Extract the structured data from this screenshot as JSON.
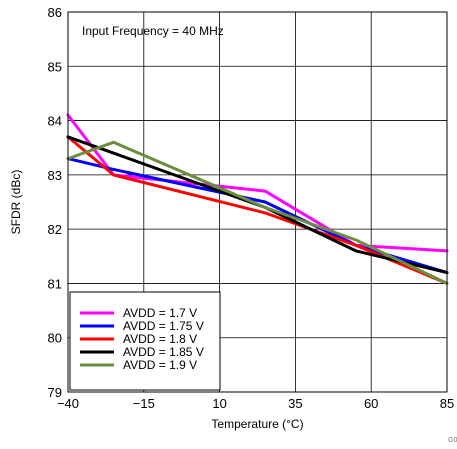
{
  "chart_data": {
    "type": "line",
    "title": "",
    "annotation": "Input Frequency = 40 MHz",
    "xlabel": "Temperature (°C)",
    "ylabel": "SFDR (dBc)",
    "xlim": [
      -40,
      85
    ],
    "ylim": [
      79,
      86
    ],
    "xticks": [
      -40,
      -15,
      10,
      35,
      60,
      85
    ],
    "xtick_labels": [
      "−40",
      "−15",
      "10",
      "35",
      "60",
      "85"
    ],
    "yticks": [
      79,
      80,
      81,
      82,
      83,
      84,
      85,
      86
    ],
    "ytick_labels": [
      "79",
      "80",
      "81",
      "82",
      "83",
      "84",
      "85",
      "86"
    ],
    "grid": true,
    "legend_position": "bottom-left",
    "series": [
      {
        "name": "AVDD = 1.7 V",
        "color": "#ff00ff",
        "x": [
          -40,
          -25,
          25,
          55,
          85
        ],
        "y": [
          84.1,
          83.0,
          82.7,
          81.7,
          81.6
        ]
      },
      {
        "name": "AVDD = 1.75 V",
        "color": "#0000ff",
        "x": [
          -40,
          -25,
          25,
          55,
          85
        ],
        "y": [
          83.3,
          83.1,
          82.5,
          81.7,
          81.2
        ]
      },
      {
        "name": "AVDD = 1.8 V",
        "color": "#ff0000",
        "x": [
          -40,
          -25,
          25,
          55,
          85
        ],
        "y": [
          83.7,
          83.0,
          82.3,
          81.7,
          81.0
        ]
      },
      {
        "name": "AVDD = 1.85 V",
        "color": "#000000",
        "x": [
          -40,
          -25,
          25,
          55,
          85
        ],
        "y": [
          83.7,
          83.4,
          82.4,
          81.6,
          81.2
        ]
      },
      {
        "name": "AVDD = 1.9 V",
        "color": "#6b8e3e",
        "x": [
          -40,
          -25,
          25,
          55,
          85
        ],
        "y": [
          83.3,
          83.6,
          82.4,
          81.8,
          81.0
        ]
      }
    ]
  },
  "figure_code": "G0"
}
